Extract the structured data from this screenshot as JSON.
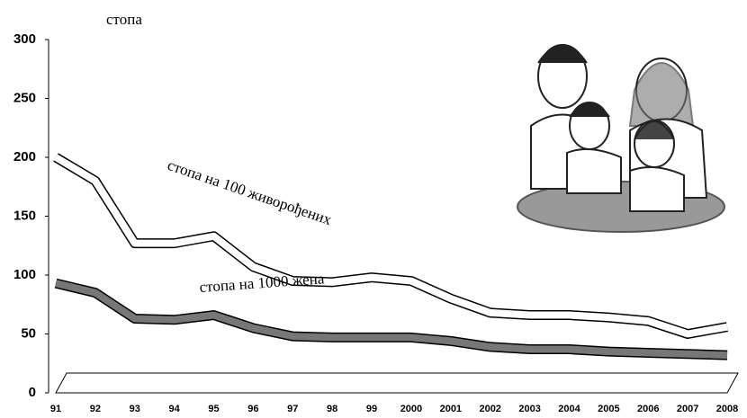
{
  "chart_data": {
    "type": "line",
    "y_label": "стопа",
    "categories": [
      "91",
      "92",
      "93",
      "94",
      "95",
      "96",
      "97",
      "98",
      "99",
      "2000",
      "2001",
      "2002",
      "2003",
      "2004",
      "2005",
      "2006",
      "2007",
      "2008"
    ],
    "series": [
      {
        "name": "стопа на 100 живорођених",
        "color": "#ffffff",
        "values": [
          200,
          180,
          127,
          127,
          133,
          107,
          95,
          94,
          98,
          95,
          80,
          68,
          66,
          66,
          64,
          61,
          50,
          56
        ]
      },
      {
        "name": "стопа на 1000 жена",
        "color": "#777777",
        "values": [
          93,
          85,
          63,
          62,
          66,
          55,
          48,
          47,
          47,
          47,
          44,
          39,
          37,
          37,
          35,
          34,
          33,
          32
        ]
      }
    ],
    "ylim": [
      0,
      300
    ],
    "yticks": [
      0,
      50,
      100,
      150,
      200,
      250,
      300
    ]
  }
}
